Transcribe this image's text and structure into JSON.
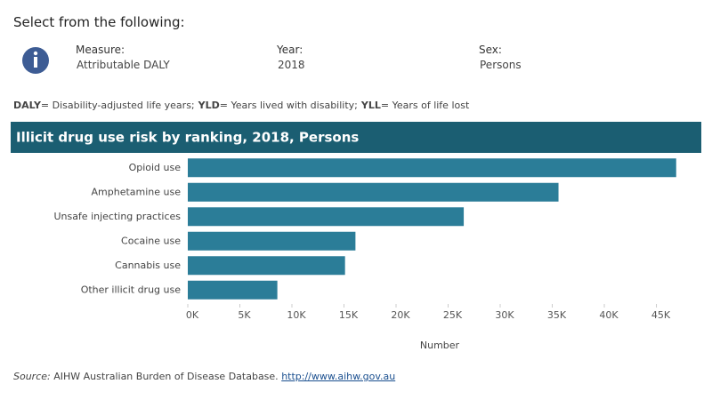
{
  "header": {
    "prompt": "Select from the following:",
    "filters": [
      {
        "label": "Measure:",
        "value": "Attributable DALY"
      },
      {
        "label": "Year:",
        "value": "2018"
      },
      {
        "label": "Sex:",
        "value": "Persons"
      }
    ]
  },
  "note": [
    {
      "term": "DALY",
      "definition": "= Disability-adjusted life years;"
    },
    {
      "term": "YLD",
      "definition": "= Years lived with disability;"
    },
    {
      "term": "YLL",
      "definition": "= Years of life lost"
    }
  ],
  "chart_data": {
    "type": "bar",
    "orientation": "horizontal",
    "title": "Illicit drug use risk by ranking, 2018, Persons",
    "title_background": "#1b5e72",
    "categories": [
      "Opioid use",
      "Amphetamine use",
      "Unsafe injecting practices",
      "Cocaine use",
      "Cannabis use",
      "Other illicit drug use"
    ],
    "values": [
      46900,
      35600,
      26500,
      16100,
      15100,
      8600
    ],
    "color": "#2b7d98",
    "xlim": [
      0,
      49400
    ],
    "xticks": [
      {
        "value": 0,
        "label": "0K"
      },
      {
        "value": 5000,
        "label": "5K"
      },
      {
        "value": 10000,
        "label": "10K"
      },
      {
        "value": 15000,
        "label": "15K"
      },
      {
        "value": 20000,
        "label": "20K"
      },
      {
        "value": 25000,
        "label": "25K"
      },
      {
        "value": 30000,
        "label": "30K"
      },
      {
        "value": 35000,
        "label": "35K"
      },
      {
        "value": 40000,
        "label": "40K"
      },
      {
        "value": 45000,
        "label": "45K"
      }
    ],
    "xlabel": "Number"
  },
  "source": {
    "label": "Source:",
    "text": "AIHW Australian Burden of Disease Database.",
    "link": "http://www.aihw.gov.au"
  }
}
